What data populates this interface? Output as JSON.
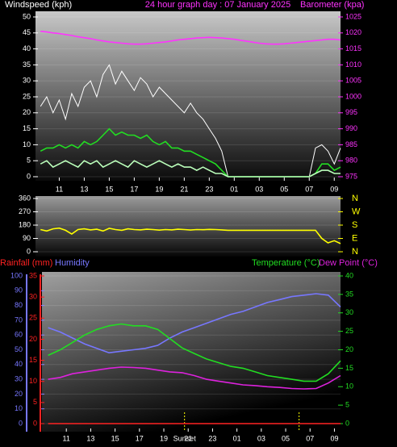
{
  "chart_data": [
    {
      "type": "line",
      "title": "24 hour graph day : 07 January 2025",
      "y_label": "Windspeed (kph)",
      "y2_label": "Barometer (kpa)",
      "x": [
        9.5,
        10,
        10.5,
        11,
        11.5,
        12,
        12.5,
        13,
        13.5,
        14,
        14.5,
        15,
        15.5,
        16,
        16.5,
        17,
        17.5,
        18,
        18.5,
        19,
        19.5,
        20,
        20.5,
        21,
        21.5,
        22,
        22.5,
        23,
        23.5,
        24,
        24.5,
        25,
        25.5,
        26,
        26.5,
        27,
        27.5,
        28,
        28.5,
        29,
        29.5,
        30,
        30.5,
        31,
        31.5,
        32,
        32.5,
        33,
        33.5
      ],
      "xlim": [
        9.1,
        33.5
      ],
      "xticks": [
        11,
        13,
        15,
        17,
        19,
        21,
        23,
        {
          "value": 25,
          "label": "01"
        },
        {
          "value": 27,
          "label": "03"
        },
        {
          "value": 29,
          "label": "05"
        },
        {
          "value": 31,
          "label": "07"
        },
        {
          "value": 33,
          "label": "09"
        }
      ],
      "ylim": [
        0,
        50
      ],
      "yticks": [
        0,
        5,
        10,
        15,
        20,
        25,
        30,
        35,
        40,
        45,
        50
      ],
      "y2lim": [
        975,
        1025
      ],
      "y2ticks": [
        975,
        980,
        985,
        990,
        995,
        1000,
        1005,
        1010,
        1015,
        1020,
        1025
      ],
      "y_color": "#ffffff",
      "y2_color": "#ff33ff",
      "grid": true,
      "series": [
        {
          "color": "#ffffff",
          "values": [
            22,
            25,
            20,
            24,
            18,
            26,
            22,
            28,
            30,
            25,
            32,
            35,
            29,
            33,
            30,
            27,
            31,
            29,
            25,
            28,
            26,
            24,
            22,
            20,
            23,
            20,
            18,
            15,
            12,
            8,
            0,
            0,
            0,
            0,
            0,
            0,
            0,
            0,
            0,
            0,
            0,
            0,
            0,
            0,
            9,
            10,
            8,
            4,
            9
          ]
        },
        {
          "color": "#22dd22",
          "values": [
            8,
            9,
            9,
            10,
            9,
            10,
            9,
            11,
            10,
            11,
            13,
            15,
            13,
            14,
            13,
            13,
            12,
            13,
            11,
            10,
            11,
            9,
            9,
            8,
            8,
            7,
            6,
            5,
            4,
            2,
            0,
            0,
            0,
            0,
            0,
            0,
            0,
            0,
            0,
            0,
            0,
            0,
            0,
            0,
            1,
            4,
            4,
            2,
            3
          ]
        },
        {
          "color": "#bbffbb",
          "values": [
            4,
            5,
            3,
            4,
            5,
            4,
            3,
            5,
            4,
            5,
            3,
            4,
            5,
            4,
            3,
            5,
            4,
            3,
            4,
            5,
            4,
            3,
            4,
            3,
            3,
            2,
            3,
            2,
            1,
            1,
            0,
            0,
            0,
            0,
            0,
            0,
            0,
            0,
            0,
            0,
            0,
            0,
            0,
            0,
            1,
            2,
            2,
            1,
            1
          ]
        },
        {
          "color": "#ff33ff",
          "axis": "y2",
          "values": [
            1020.5,
            1020.3,
            1020,
            1019.8,
            1019.5,
            1019.2,
            1018.8,
            1018.5,
            1018.2,
            1017.8,
            1017.5,
            1017.2,
            1017,
            1016.8,
            1016.6,
            1016.5,
            1016.5,
            1016.6,
            1016.8,
            1017,
            1017.2,
            1017.5,
            1017.8,
            1018,
            1018.2,
            1018.4,
            1018.5,
            1018.6,
            1018.5,
            1018.4,
            1018.2,
            1018,
            1017.7,
            1017.4,
            1017.1,
            1016.8,
            1016.6,
            1016.5,
            1016.5,
            1016.6,
            1016.8,
            1017,
            1017.2,
            1017.4,
            1017.6,
            1017.8,
            1018,
            1018,
            1017.8
          ]
        }
      ]
    },
    {
      "type": "line",
      "x": [
        9.5,
        10,
        10.5,
        11,
        11.5,
        12,
        12.5,
        13,
        13.5,
        14,
        14.5,
        15,
        15.5,
        16,
        16.5,
        17,
        17.5,
        18,
        18.5,
        19,
        19.5,
        20,
        20.5,
        21,
        21.5,
        22,
        22.5,
        23,
        23.5,
        24,
        24.5,
        25,
        25.5,
        26,
        26.5,
        27,
        27.5,
        28,
        28.5,
        29,
        29.5,
        30,
        30.5,
        31,
        31.5,
        32,
        32.5,
        33,
        33.5
      ],
      "xlim": [
        9.1,
        33.5
      ],
      "ylim": [
        0,
        360
      ],
      "yticks": [
        0,
        90,
        180,
        270,
        360
      ],
      "y2lim": [
        0,
        360
      ],
      "y2ticks": [
        {
          "value": 360,
          "label": "N"
        },
        {
          "value": 270,
          "label": "W"
        },
        {
          "value": 180,
          "label": "S"
        },
        {
          "value": 90,
          "label": "E"
        },
        {
          "value": 0,
          "label": "N"
        }
      ],
      "y_color": "#ffffff",
      "y2_color": "#ffff00",
      "grid": true,
      "series": [
        {
          "color": "#ffff00",
          "values": [
            150,
            140,
            155,
            160,
            145,
            120,
            150,
            155,
            148,
            152,
            140,
            158,
            150,
            145,
            155,
            150,
            148,
            152,
            150,
            146,
            150,
            148,
            152,
            150,
            147,
            150,
            149,
            151,
            150,
            148,
            145,
            145,
            145,
            145,
            145,
            145,
            145,
            145,
            145,
            145,
            145,
            145,
            145,
            145,
            145,
            90,
            60,
            75,
            55
          ]
        }
      ]
    },
    {
      "type": "line",
      "x": [
        9.5,
        10.5,
        11.5,
        12.5,
        13.5,
        14.5,
        15.5,
        16.5,
        17.5,
        18.5,
        19.5,
        20.5,
        21.5,
        22.5,
        23.5,
        24.5,
        25.5,
        26.5,
        27.5,
        28.5,
        29.5,
        30.5,
        31.5,
        32.5,
        33.5
      ],
      "xlim": [
        9,
        33.5
      ],
      "xticks": [
        11,
        13,
        15,
        17,
        19,
        21,
        23,
        {
          "value": 25,
          "label": "01"
        },
        {
          "value": 27,
          "label": "03"
        },
        {
          "value": 29,
          "label": "05"
        },
        {
          "value": 31,
          "label": "07"
        },
        {
          "value": 33,
          "label": "09"
        }
      ],
      "ylim": [
        0,
        100
      ],
      "yticks": [
        0,
        10,
        20,
        30,
        40,
        50,
        60,
        70,
        80,
        90,
        100
      ],
      "y3lim": [
        0,
        35
      ],
      "y3ticks": [
        0,
        5,
        10,
        15,
        20,
        25,
        30,
        35
      ],
      "y2lim": [
        0,
        40
      ],
      "y2ticks": [
        0,
        5,
        10,
        15,
        20,
        25,
        30,
        35,
        40
      ],
      "y_color": "#7777ff",
      "y3_color": "#ff2222",
      "y2_color": "#22dd22",
      "grid": true,
      "vlines": [
        20.7,
        30.1
      ],
      "annotations": [
        {
          "text": "Sunset",
          "x": 20.7
        }
      ],
      "series": [
        {
          "name": "Rainfall (mm)",
          "color": "#ff2222",
          "axis": "y3",
          "values": [
            0,
            0,
            0,
            0,
            0,
            0,
            0,
            0,
            0,
            0,
            0,
            0,
            0,
            0,
            0,
            0,
            0,
            0,
            0,
            0,
            0,
            0,
            0,
            0,
            0
          ]
        },
        {
          "name": "Humidity",
          "color": "#7777ff",
          "values": [
            65,
            62,
            58,
            54,
            51,
            48,
            49,
            50,
            51,
            53,
            58,
            62,
            65,
            68,
            71,
            74,
            76,
            79,
            82,
            84,
            86,
            87,
            88,
            87,
            79
          ]
        },
        {
          "name": "Temperature (°C)",
          "color": "#22dd22",
          "axis": "y2",
          "values": [
            18.5,
            20,
            22,
            24,
            25.5,
            26.5,
            27,
            26.5,
            26.5,
            25.5,
            23,
            20.5,
            19,
            17.5,
            16.5,
            15.5,
            15,
            14,
            13,
            12.5,
            12,
            11.5,
            11.5,
            13.5,
            17
          ]
        },
        {
          "name": "Dew Point (°C)",
          "color": "#dd22dd",
          "axis": "y2",
          "values": [
            12,
            12.5,
            13.5,
            14,
            14.5,
            15,
            15.3,
            15.2,
            15,
            14.5,
            14,
            13.8,
            13,
            12,
            11.5,
            11,
            10.5,
            10.3,
            10,
            9.8,
            9.5,
            9.4,
            9.5,
            11,
            13
          ]
        }
      ]
    }
  ]
}
